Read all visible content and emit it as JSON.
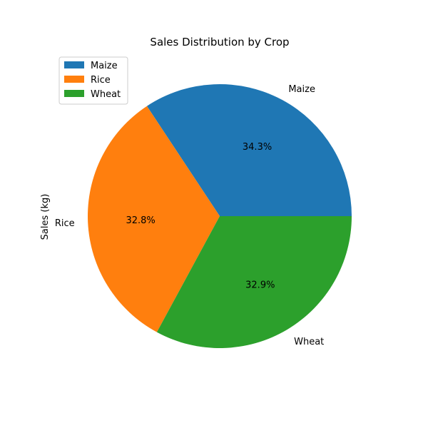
{
  "chart_data": {
    "type": "pie",
    "title": "Sales Distribution by Crop",
    "ylabel": "Sales (kg)",
    "categories": [
      "Maize",
      "Rice",
      "Wheat"
    ],
    "values": [
      34.3,
      32.8,
      32.9
    ],
    "percent_labels": [
      "34.3%",
      "32.8%",
      "32.9%"
    ],
    "colors": [
      "#1f77b4",
      "#ff7f0e",
      "#2ca02c"
    ],
    "legend": {
      "placement": "top-left",
      "entries": [
        "Maize",
        "Rice",
        "Wheat"
      ]
    }
  }
}
